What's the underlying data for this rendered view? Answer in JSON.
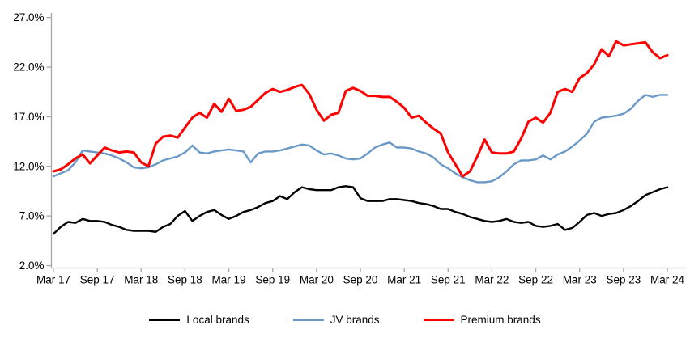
{
  "chart_data": {
    "type": "line",
    "title": "",
    "xlabel": "",
    "ylabel": "",
    "y_unit": "%",
    "ylim": [
      2.0,
      27.0
    ],
    "y_tick_labels": [
      "27.0%",
      "22.0%",
      "17.0%",
      "12.0%",
      "7.0%",
      "2.0%"
    ],
    "y_tick_values": [
      27.0,
      22.0,
      17.0,
      12.0,
      7.0,
      2.0
    ],
    "x_tick_labels": [
      "Mar 17",
      "Sep 17",
      "Mar 18",
      "Sep 18",
      "Mar 19",
      "Sep 19",
      "Mar 20",
      "Sep 20",
      "Mar 21",
      "Sep 21",
      "Mar 22",
      "Sep 22",
      "Mar 23",
      "Sep 23",
      "Mar 24"
    ],
    "x_tick_every_n_points": 6,
    "grid": false,
    "legend_position": "bottom-center",
    "axis_color": "#A6A6A6",
    "categories": [
      "2017-03",
      "2017-04",
      "2017-05",
      "2017-06",
      "2017-07",
      "2017-08",
      "2017-09",
      "2017-10",
      "2017-11",
      "2017-12",
      "2018-01",
      "2018-02",
      "2018-03",
      "2018-04",
      "2018-05",
      "2018-06",
      "2018-07",
      "2018-08",
      "2018-09",
      "2018-10",
      "2018-11",
      "2018-12",
      "2019-01",
      "2019-02",
      "2019-03",
      "2019-04",
      "2019-05",
      "2019-06",
      "2019-07",
      "2019-08",
      "2019-09",
      "2019-10",
      "2019-11",
      "2019-12",
      "2020-01",
      "2020-02",
      "2020-03",
      "2020-04",
      "2020-05",
      "2020-06",
      "2020-07",
      "2020-08",
      "2020-09",
      "2020-10",
      "2020-11",
      "2020-12",
      "2021-01",
      "2021-02",
      "2021-03",
      "2021-04",
      "2021-05",
      "2021-06",
      "2021-07",
      "2021-08",
      "2021-09",
      "2021-10",
      "2021-11",
      "2021-12",
      "2022-01",
      "2022-02",
      "2022-03",
      "2022-04",
      "2022-05",
      "2022-06",
      "2022-07",
      "2022-08",
      "2022-09",
      "2022-10",
      "2022-11",
      "2022-12",
      "2023-01",
      "2023-02",
      "2023-03",
      "2023-04",
      "2023-05",
      "2023-06",
      "2023-07",
      "2023-08",
      "2023-09",
      "2023-10",
      "2023-11",
      "2023-12",
      "2024-01",
      "2024-02",
      "2024-03"
    ],
    "series": [
      {
        "name": "Local brands",
        "color": "#000000",
        "stroke_width": 2.4,
        "values": [
          5.2,
          5.9,
          6.4,
          6.3,
          6.7,
          6.5,
          6.5,
          6.4,
          6.1,
          5.9,
          5.6,
          5.5,
          5.5,
          5.5,
          5.4,
          5.9,
          6.2,
          7.0,
          7.5,
          6.5,
          7.0,
          7.4,
          7.6,
          7.1,
          6.7,
          7.0,
          7.4,
          7.6,
          7.9,
          8.3,
          8.5,
          9.0,
          8.7,
          9.4,
          9.9,
          9.7,
          9.6,
          9.6,
          9.6,
          9.9,
          10.0,
          9.9,
          8.8,
          8.5,
          8.5,
          8.5,
          8.7,
          8.7,
          8.6,
          8.5,
          8.3,
          8.2,
          8.0,
          7.7,
          7.7,
          7.4,
          7.2,
          6.9,
          6.7,
          6.5,
          6.4,
          6.5,
          6.7,
          6.4,
          6.3,
          6.4,
          6.0,
          5.9,
          6.0,
          6.2,
          5.6,
          5.8,
          6.4,
          7.1,
          7.3,
          7.0,
          7.2,
          7.3,
          7.6,
          8.0,
          8.5,
          9.1,
          9.4,
          9.7,
          9.9
        ]
      },
      {
        "name": "JV brands",
        "color": "#6A99C7",
        "stroke_width": 2.4,
        "values": [
          11.0,
          11.3,
          11.6,
          12.4,
          13.6,
          13.5,
          13.4,
          13.3,
          13.1,
          12.8,
          12.4,
          11.9,
          11.8,
          11.9,
          12.2,
          12.6,
          12.8,
          13.0,
          13.4,
          14.1,
          13.4,
          13.3,
          13.5,
          13.6,
          13.7,
          13.6,
          13.5,
          12.4,
          13.3,
          13.5,
          13.5,
          13.6,
          13.8,
          14.0,
          14.2,
          14.1,
          13.6,
          13.2,
          13.3,
          13.1,
          12.8,
          12.7,
          12.8,
          13.3,
          13.9,
          14.2,
          14.4,
          13.9,
          13.9,
          13.8,
          13.5,
          13.3,
          12.9,
          12.2,
          11.8,
          11.3,
          10.9,
          10.6,
          10.4,
          10.4,
          10.5,
          10.9,
          11.5,
          12.2,
          12.6,
          12.6,
          12.7,
          13.1,
          12.7,
          13.2,
          13.5,
          14.0,
          14.6,
          15.3,
          16.5,
          16.9,
          17.0,
          17.1,
          17.3,
          17.8,
          18.6,
          19.2,
          19.0,
          19.2,
          19.2
        ]
      },
      {
        "name": "Premium brands",
        "color": "#FE0000",
        "stroke_width": 3.0,
        "values": [
          11.5,
          11.7,
          12.2,
          12.8,
          13.2,
          12.3,
          13.1,
          13.9,
          13.6,
          13.4,
          13.5,
          13.4,
          12.4,
          12.0,
          14.3,
          15.0,
          15.1,
          14.9,
          15.9,
          16.9,
          17.4,
          16.9,
          18.3,
          17.5,
          18.8,
          17.6,
          17.7,
          18.0,
          18.7,
          19.4,
          19.8,
          19.5,
          19.7,
          20.0,
          20.2,
          19.3,
          17.7,
          16.6,
          17.2,
          17.4,
          19.6,
          19.9,
          19.6,
          19.1,
          19.1,
          19.0,
          19.0,
          18.5,
          17.9,
          16.9,
          17.1,
          16.4,
          15.8,
          15.3,
          13.4,
          12.2,
          11.0,
          11.5,
          13.0,
          14.7,
          13.4,
          13.3,
          13.3,
          13.5,
          14.8,
          16.5,
          16.9,
          16.4,
          17.4,
          19.5,
          19.8,
          19.5,
          20.9,
          21.4,
          22.3,
          23.8,
          23.1,
          24.6,
          24.2,
          24.3,
          24.4,
          24.5,
          23.5,
          22.9,
          23.2
        ]
      }
    ]
  },
  "legend": {
    "items": [
      {
        "label": "Local brands"
      },
      {
        "label": "JV brands"
      },
      {
        "label": "Premium brands"
      }
    ]
  }
}
